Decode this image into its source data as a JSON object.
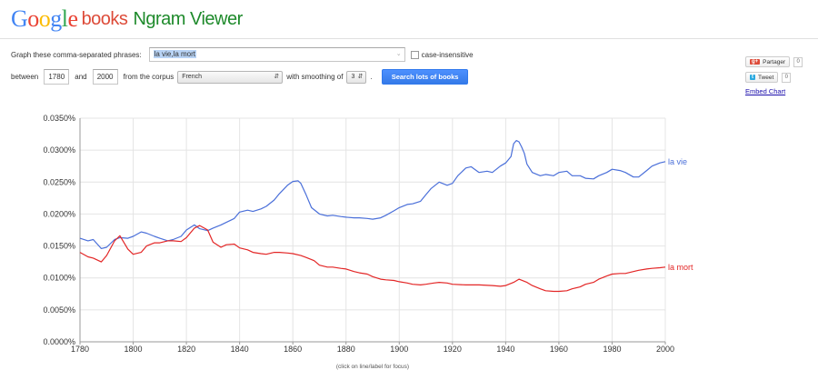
{
  "header": {
    "logo_letters": [
      {
        "ch": "G",
        "color": "#4285f4"
      },
      {
        "ch": "o",
        "color": "#ea4335"
      },
      {
        "ch": "o",
        "color": "#fbbc05"
      },
      {
        "ch": "g",
        "color": "#4285f4"
      },
      {
        "ch": "l",
        "color": "#34a853"
      },
      {
        "ch": "e",
        "color": "#ea4335"
      }
    ],
    "books": "books",
    "title": "Ngram Viewer"
  },
  "form": {
    "phrases_label": "Graph these comma-separated phrases:",
    "phrases_value": "la vie,la mort",
    "case_insensitive_label": "case-insensitive",
    "between_label": "between",
    "start_year": "1780",
    "and_label": "and",
    "end_year": "2000",
    "corpus_label": "from the corpus",
    "corpus_value": "French",
    "smoothing_label": "with smoothing of",
    "smoothing_value": "3",
    "period": ".",
    "search_button": "Search lots of books"
  },
  "share": {
    "gplus_icon": "g+",
    "gplus_label": "Partager",
    "gplus_count": "0",
    "tweet_icon": "t",
    "tweet_label": "Tweet",
    "tweet_count": "0",
    "embed_label": "Embed Chart"
  },
  "caption": "(click on line/label for focus)",
  "chart_data": {
    "type": "line",
    "xlim": [
      1780,
      2000
    ],
    "ylim": [
      0,
      0.035
    ],
    "x_ticks": [
      1780,
      1800,
      1820,
      1840,
      1860,
      1880,
      1900,
      1920,
      1940,
      1960,
      1980,
      2000
    ],
    "y_ticks": [
      {
        "v": 0,
        "label": "0.0000%"
      },
      {
        "v": 0.005,
        "label": "0.0050%"
      },
      {
        "v": 0.01,
        "label": "0.0100%"
      },
      {
        "v": 0.015,
        "label": "0.0150%"
      },
      {
        "v": 0.02,
        "label": "0.0200%"
      },
      {
        "v": 0.025,
        "label": "0.0250%"
      },
      {
        "v": 0.03,
        "label": "0.0300%"
      },
      {
        "v": 0.035,
        "label": "0.0350%"
      }
    ],
    "grid": true,
    "series": [
      {
        "name": "la vie",
        "color": "#4a6fd9",
        "x": [
          1780,
          1783,
          1785,
          1788,
          1790,
          1793,
          1795,
          1798,
          1800,
          1803,
          1805,
          1808,
          1810,
          1813,
          1815,
          1818,
          1820,
          1823,
          1825,
          1828,
          1830,
          1833,
          1835,
          1838,
          1840,
          1843,
          1845,
          1848,
          1850,
          1853,
          1855,
          1858,
          1860,
          1862,
          1863,
          1865,
          1867,
          1870,
          1873,
          1875,
          1878,
          1880,
          1883,
          1885,
          1888,
          1890,
          1893,
          1895,
          1898,
          1900,
          1903,
          1905,
          1908,
          1910,
          1912,
          1915,
          1918,
          1920,
          1922,
          1925,
          1927,
          1930,
          1933,
          1935,
          1938,
          1940,
          1942,
          1943,
          1944,
          1945,
          1946,
          1947,
          1948,
          1950,
          1953,
          1955,
          1958,
          1960,
          1963,
          1965,
          1968,
          1970,
          1973,
          1975,
          1978,
          1980,
          1983,
          1985,
          1988,
          1990,
          1993,
          1995,
          1998,
          2000
        ],
        "values": [
          0.0162,
          0.0158,
          0.016,
          0.0146,
          0.0148,
          0.016,
          0.0163,
          0.0162,
          0.0165,
          0.0172,
          0.017,
          0.0165,
          0.0162,
          0.0158,
          0.016,
          0.0165,
          0.0175,
          0.0183,
          0.0177,
          0.0174,
          0.0178,
          0.0183,
          0.0187,
          0.0193,
          0.0203,
          0.0206,
          0.0204,
          0.0208,
          0.0212,
          0.0222,
          0.0232,
          0.0245,
          0.0251,
          0.0252,
          0.0248,
          0.023,
          0.021,
          0.02,
          0.0197,
          0.0198,
          0.0196,
          0.0195,
          0.0194,
          0.0194,
          0.0193,
          0.0192,
          0.0194,
          0.0198,
          0.0205,
          0.021,
          0.0215,
          0.0216,
          0.022,
          0.023,
          0.024,
          0.025,
          0.0245,
          0.0248,
          0.026,
          0.0272,
          0.0274,
          0.0265,
          0.0267,
          0.0265,
          0.0275,
          0.028,
          0.029,
          0.031,
          0.0315,
          0.0313,
          0.0305,
          0.0295,
          0.0278,
          0.0265,
          0.026,
          0.0262,
          0.026,
          0.0265,
          0.0267,
          0.026,
          0.026,
          0.0256,
          0.0255,
          0.026,
          0.0265,
          0.027,
          0.0268,
          0.0265,
          0.0258,
          0.0258,
          0.0268,
          0.0275,
          0.028,
          0.0282
        ]
      },
      {
        "name": "la mort",
        "color": "#e32626",
        "x": [
          1780,
          1783,
          1785,
          1788,
          1790,
          1793,
          1795,
          1798,
          1800,
          1803,
          1805,
          1808,
          1810,
          1813,
          1815,
          1818,
          1820,
          1823,
          1825,
          1828,
          1830,
          1833,
          1835,
          1838,
          1840,
          1843,
          1845,
          1848,
          1850,
          1853,
          1855,
          1858,
          1860,
          1863,
          1865,
          1868,
          1870,
          1873,
          1875,
          1878,
          1880,
          1883,
          1885,
          1888,
          1890,
          1893,
          1895,
          1898,
          1900,
          1903,
          1905,
          1908,
          1910,
          1913,
          1915,
          1918,
          1920,
          1925,
          1930,
          1935,
          1938,
          1940,
          1943,
          1945,
          1948,
          1950,
          1953,
          1955,
          1958,
          1960,
          1963,
          1965,
          1968,
          1970,
          1973,
          1975,
          1978,
          1980,
          1983,
          1985,
          1988,
          1990,
          1993,
          1995,
          1998,
          2000
        ],
        "values": [
          0.014,
          0.0133,
          0.0131,
          0.0125,
          0.0135,
          0.0158,
          0.0166,
          0.0145,
          0.0137,
          0.014,
          0.015,
          0.0155,
          0.0155,
          0.0158,
          0.0158,
          0.0157,
          0.0163,
          0.0178,
          0.0182,
          0.0175,
          0.0156,
          0.0148,
          0.0152,
          0.0153,
          0.0147,
          0.0144,
          0.014,
          0.0138,
          0.0137,
          0.014,
          0.014,
          0.0139,
          0.0138,
          0.0135,
          0.0132,
          0.0127,
          0.012,
          0.0117,
          0.0117,
          0.0115,
          0.0114,
          0.011,
          0.0108,
          0.0106,
          0.0102,
          0.0098,
          0.0097,
          0.0096,
          0.0094,
          0.0092,
          0.009,
          0.0089,
          0.009,
          0.0092,
          0.0093,
          0.0092,
          0.009,
          0.0089,
          0.0089,
          0.0088,
          0.0087,
          0.0088,
          0.0093,
          0.0098,
          0.0093,
          0.0088,
          0.0083,
          0.008,
          0.0079,
          0.0079,
          0.008,
          0.0083,
          0.0086,
          0.009,
          0.0093,
          0.0098,
          0.0103,
          0.0106,
          0.0107,
          0.0107,
          0.011,
          0.0112,
          0.0114,
          0.0115,
          0.0116,
          0.0117
        ]
      }
    ]
  }
}
